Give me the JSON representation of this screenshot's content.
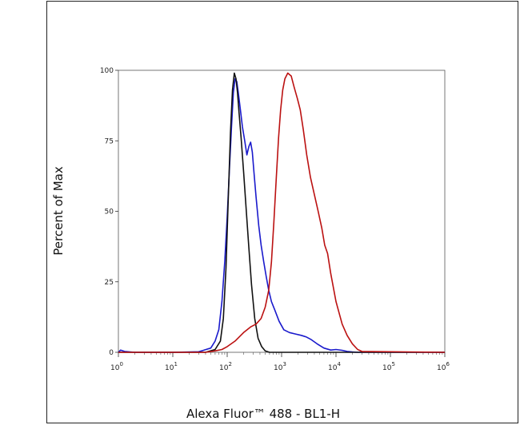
{
  "chart_data": {
    "type": "line",
    "title": "",
    "xlabel": "Alexa Fluor™ 488 - BL1-H",
    "ylabel": "Percent of Max",
    "x_scale": "log",
    "xlim": [
      1,
      1000000
    ],
    "ylim": [
      0,
      100
    ],
    "x_ticks": [
      {
        "value": 1,
        "base": "10",
        "exp": "0"
      },
      {
        "value": 10,
        "base": "10",
        "exp": "1"
      },
      {
        "value": 100,
        "base": "10",
        "exp": "2"
      },
      {
        "value": 1000,
        "base": "10",
        "exp": "3"
      },
      {
        "value": 10000,
        "base": "10",
        "exp": "4"
      },
      {
        "value": 100000,
        "base": "10",
        "exp": "5"
      },
      {
        "value": 1000000,
        "base": "10",
        "exp": "6"
      }
    ],
    "y_ticks": [
      "0",
      "25",
      "50",
      "75",
      "100"
    ],
    "grid": false,
    "series": [
      {
        "color": "#1a1acc",
        "x": [
          1,
          1.1,
          1.3,
          2,
          10,
          30,
          50,
          60,
          70,
          80,
          90,
          100,
          110,
          120,
          130,
          140,
          150,
          160,
          175,
          190,
          210,
          230,
          250,
          270,
          290,
          310,
          340,
          380,
          420,
          470,
          520,
          580,
          650,
          750,
          900,
          1100,
          1400,
          1800,
          2300,
          2800,
          3500,
          4500,
          6000,
          8000,
          10000,
          13000,
          16000,
          20000,
          25000,
          1000000
        ],
        "y": [
          0,
          0.8,
          0.3,
          0,
          0,
          0.2,
          1.5,
          4,
          8,
          18,
          32,
          48,
          65,
          80,
          92,
          97,
          96,
          92,
          86,
          80,
          75,
          70,
          73,
          74.5,
          71,
          64,
          55,
          45,
          38,
          32,
          27,
          22,
          18,
          15,
          11,
          8,
          7,
          6.5,
          6,
          5.5,
          4.5,
          3,
          1.5,
          0.8,
          1,
          0.7,
          0.3,
          0.1,
          0,
          0
        ]
      },
      {
        "color": "#111111",
        "x": [
          1,
          40,
          60,
          75,
          85,
          95,
          105,
          115,
          125,
          135,
          145,
          155,
          165,
          180,
          200,
          225,
          250,
          280,
          320,
          370,
          430,
          500,
          600,
          1000000
        ],
        "y": [
          0,
          0,
          1,
          4,
          12,
          30,
          55,
          78,
          93,
          99,
          97,
          92,
          85,
          76,
          64,
          50,
          37,
          24,
          12,
          5,
          2,
          0.5,
          0,
          0
        ]
      },
      {
        "color": "#bb1111",
        "x": [
          1,
          40,
          60,
          80,
          100,
          140,
          200,
          270,
          340,
          420,
          500,
          580,
          650,
          720,
          800,
          880,
          960,
          1050,
          1150,
          1300,
          1500,
          1700,
          1950,
          2200,
          2500,
          2900,
          3400,
          4000,
          4700,
          5500,
          6200,
          7000,
          8000,
          10000,
          13000,
          16000,
          20000,
          25000,
          30000,
          1000000
        ],
        "y": [
          0,
          0,
          0.5,
          1,
          2,
          4,
          7,
          9,
          10,
          12,
          16,
          22,
          32,
          46,
          62,
          76,
          86,
          93,
          97,
          99,
          98,
          94,
          90,
          86,
          79,
          70,
          62,
          56,
          50,
          44,
          38,
          35,
          28,
          18,
          10,
          6,
          3,
          1,
          0.3,
          0
        ]
      }
    ]
  }
}
